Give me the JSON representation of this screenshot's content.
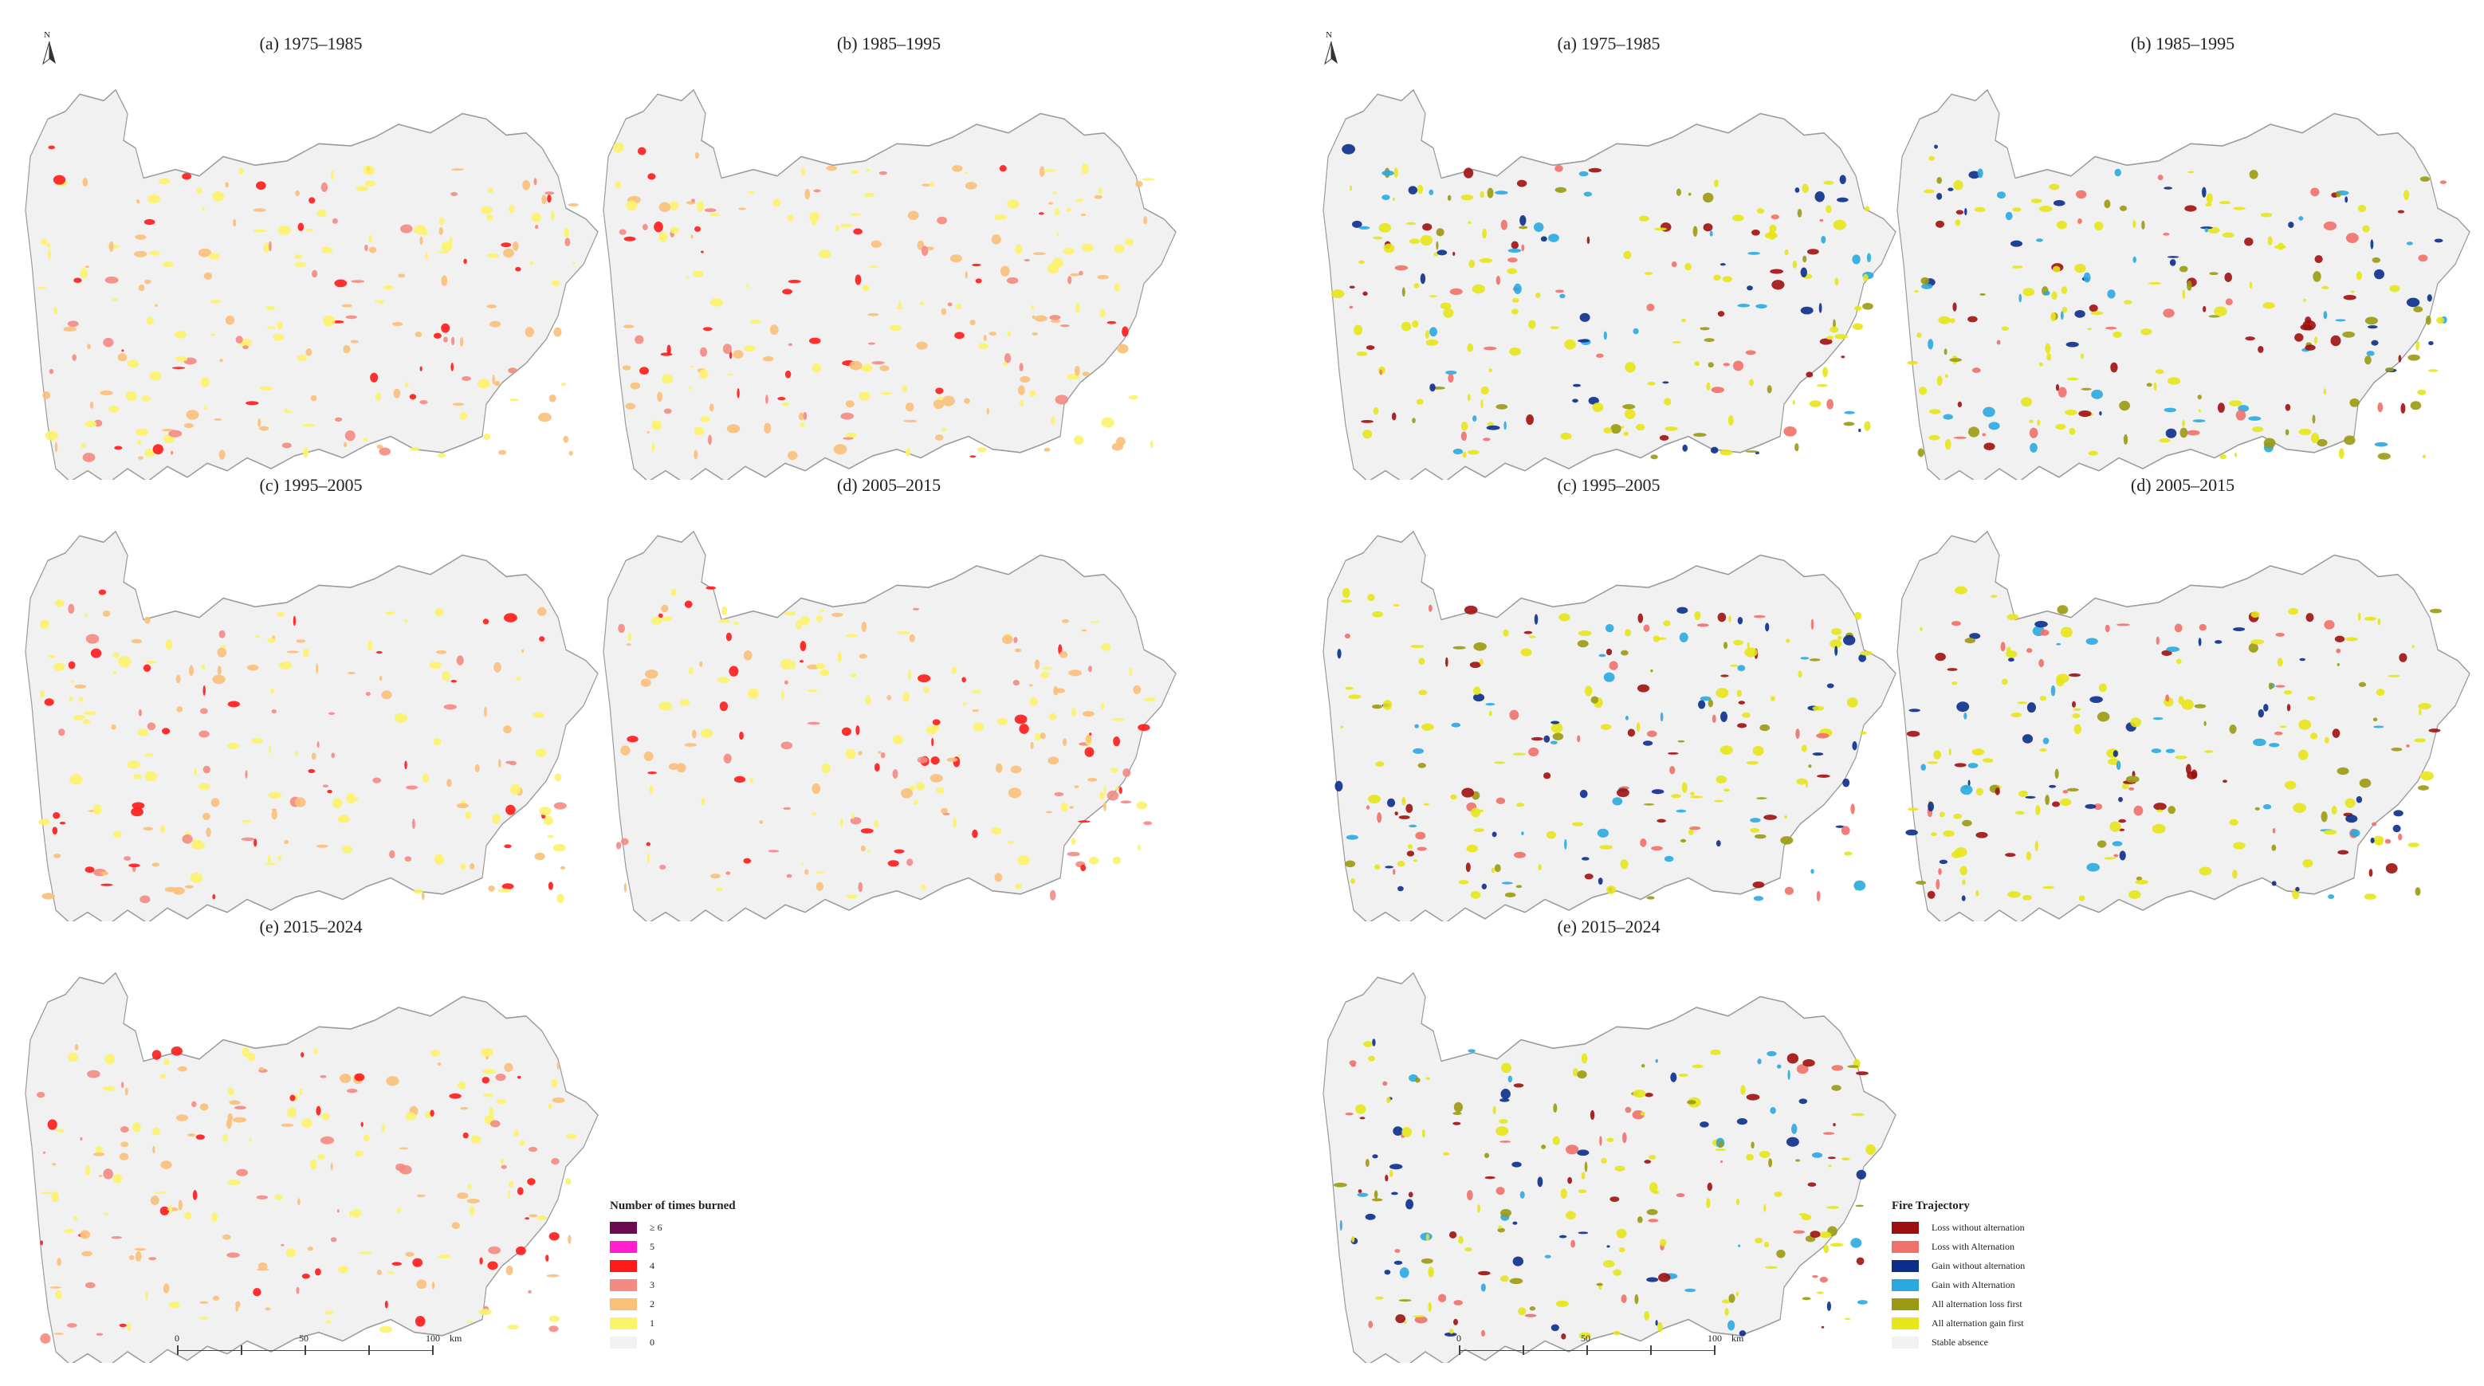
{
  "left_figure": {
    "panels": [
      {
        "id": "a",
        "title": "(a) 1975–1985"
      },
      {
        "id": "b",
        "title": "(b) 1985–1995"
      },
      {
        "id": "c",
        "title": "(c) 1995–2005"
      },
      {
        "id": "d",
        "title": "(d) 2005–2015"
      },
      {
        "id": "e",
        "title": "(e) 2015–2024"
      }
    ],
    "north_label": "N",
    "legend": {
      "title": "Number of times burned",
      "items": [
        {
          "label": "≥ 6",
          "color": "#6b0a4f"
        },
        {
          "label": "5",
          "color": "#ff1fd0"
        },
        {
          "label": "4",
          "color": "#ff1a1a"
        },
        {
          "label": "3",
          "color": "#f38a83"
        },
        {
          "label": "2",
          "color": "#f9c07a"
        },
        {
          "label": "1",
          "color": "#fbf36a"
        },
        {
          "label": "0",
          "color": "#f2f2f2"
        }
      ]
    },
    "scalebar": {
      "ticks": [
        "0",
        "50",
        "100"
      ],
      "unit": "km"
    }
  },
  "right_figure": {
    "panels": [
      {
        "id": "a",
        "title": "(a) 1975–1985"
      },
      {
        "id": "b",
        "title": "(b) 1985–1995"
      },
      {
        "id": "c",
        "title": "(c) 1995–2005"
      },
      {
        "id": "d",
        "title": "(d) 2005–2015"
      },
      {
        "id": "e",
        "title": "(e) 2015–2024"
      }
    ],
    "north_label": "N",
    "legend": {
      "title": "Fire Trajectory",
      "items": [
        {
          "label": "Loss without alternation",
          "color": "#9e0f0f"
        },
        {
          "label": "Loss with Alternation",
          "color": "#f0706a"
        },
        {
          "label": "Gain without alternation",
          "color": "#0c2d8a"
        },
        {
          "label": "Gain with Alternation",
          "color": "#2aa8e0"
        },
        {
          "label": "All alternation loss first",
          "color": "#9a9a12"
        },
        {
          "label": "All alternation gain first",
          "color": "#e6e619"
        },
        {
          "label": "Stable absence",
          "color": "#f2f2f2"
        }
      ]
    },
    "scalebar": {
      "ticks": [
        "0",
        "50",
        "100"
      ],
      "unit": "km"
    }
  },
  "colors": {
    "region_fill": "#f1f1f1",
    "region_stroke": "#9a9a9a"
  }
}
